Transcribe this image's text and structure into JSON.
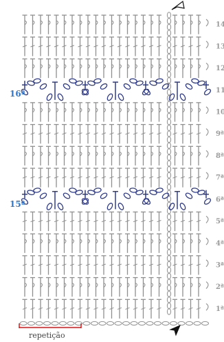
{
  "row_labels": [
    "1ª",
    "2ª",
    "3ª",
    "4ª",
    "5ª",
    "6ª",
    "7ª",
    "8ª",
    "9ª",
    "10",
    "11",
    "12",
    "13",
    "14"
  ],
  "side_labels": {
    "upper": "16ª",
    "lower": "15ª"
  },
  "legend": {
    "text": "repetição"
  },
  "colors": {
    "stitch": "#8f8f8f",
    "motif": "#2e3a8c",
    "accent_label": "#2f76c8",
    "legend_line": "#e01010",
    "row_label": "#9a9a9a"
  },
  "icons": {
    "start_marker": "arrow-filled-icon",
    "end_marker": "arrow-outline-icon"
  }
}
